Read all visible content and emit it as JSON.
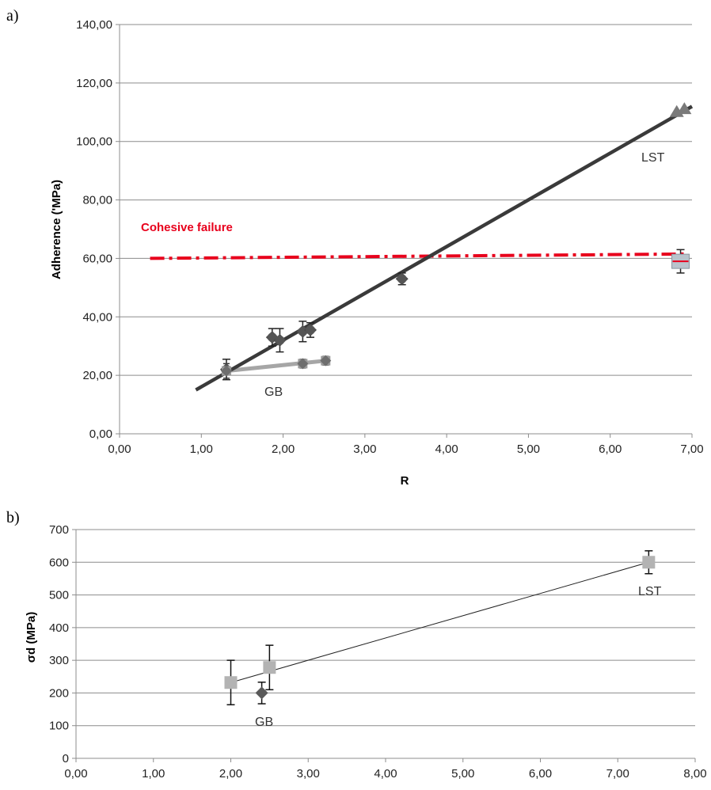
{
  "chart_data": [
    {
      "type": "scatter",
      "panel_label": "a)",
      "title": "",
      "xlabel": "R",
      "ylabel": "Adherence ('MPa)",
      "xlim": [
        0,
        7.5
      ],
      "ylim": [
        0,
        140
      ],
      "x_ticks": [
        "0,00",
        "1,00",
        "2,00",
        "3,00",
        "4,00",
        "5,00",
        "6,00",
        "7,00"
      ],
      "y_ticks": [
        "0,00",
        "20,00",
        "40,00",
        "60,00",
        "80,00",
        "100,00",
        "120,00",
        "140,00"
      ],
      "grid": true,
      "annotations": {
        "cohesive": "Cohesive failure",
        "lst": "LST",
        "gb": "GB"
      },
      "colors": {
        "lst": "#3a3a3a",
        "gb": "#a6a6a6",
        "cohesive": "#e8001c",
        "marker_dark": "#4a4a4a"
      },
      "series": [
        {
          "points": [
            {
              "x": 1.4,
              "y": 22.0,
              "err": 3.5
            },
            {
              "x": 2.0,
              "y": 33.0,
              "err": 3.0
            },
            {
              "x": 2.1,
              "y": 32.0,
              "err": 4.0
            },
            {
              "x": 2.4,
              "y": 35.0,
              "err": 3.5
            },
            {
              "x": 2.5,
              "y": 35.5,
              "err": 2.5
            },
            {
              "x": 3.7,
              "y": 53.0,
              "err": 2.0
            },
            {
              "x": 7.3,
              "y": 110.0,
              "err": 0
            },
            {
              "x": 7.4,
              "y": 111.0,
              "err": 0
            }
          ],
          "trend": [
            [
              1.0,
              15.0
            ],
            [
              7.5,
              112.0
            ]
          ]
        },
        {
          "points": [
            {
              "x": 1.4,
              "y": 21.5,
              "err": 2.5
            },
            {
              "x": 2.4,
              "y": 24.0,
              "err": 1.5
            },
            {
              "x": 2.7,
              "y": 25.0,
              "err": 1.5
            }
          ],
          "trend": [
            [
              1.4,
              21.5
            ],
            [
              2.7,
              25.0
            ]
          ]
        },
        {
          "points": [
            {
              "x": 7.35,
              "y": 59.0,
              "err": 4.0
            }
          ],
          "trend": [
            [
              0.4,
              60.0
            ],
            [
              7.4,
              61.5
            ]
          ]
        }
      ]
    },
    {
      "type": "scatter",
      "panel_label": "b)",
      "title": "",
      "xlabel": "",
      "ylabel": "σd (MPa)",
      "xlim": [
        0,
        8
      ],
      "ylim": [
        0,
        700
      ],
      "x_ticks": [
        "0,00",
        "1,00",
        "2,00",
        "3,00",
        "4,00",
        "5,00",
        "6,00",
        "7,00",
        "8,00"
      ],
      "y_ticks": [
        "0",
        "100",
        "200",
        "300",
        "400",
        "500",
        "600",
        "700"
      ],
      "grid": true,
      "annotations": {
        "lst": "LST",
        "gb": "GB"
      },
      "colors": {
        "lst": "#b3b3b3",
        "gb": "#595959"
      },
      "series": [
        {
          "points": [
            {
              "x": 2.0,
              "y": 232,
              "err": 68
            },
            {
              "x": 2.5,
              "y": 278,
              "err": 68
            },
            {
              "x": 7.4,
              "y": 600,
              "err": 35
            }
          ],
          "trend": [
            [
              2.0,
              232
            ],
            [
              7.4,
              600
            ]
          ]
        },
        {
          "points": [
            {
              "x": 2.4,
              "y": 200,
              "err": 33
            }
          ]
        }
      ]
    }
  ]
}
